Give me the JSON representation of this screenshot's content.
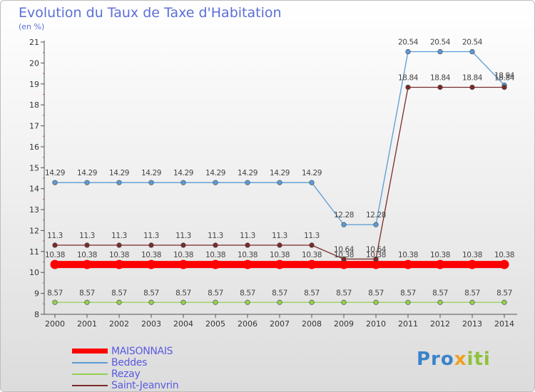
{
  "title": "Evolution du Taux de Taxe d'Habitation",
  "unit_label": "(en %)",
  "logo": {
    "part1": "Pro",
    "part2": "x",
    "part3": "iti"
  },
  "chart_data": {
    "type": "line",
    "title": "Evolution du Taux de Taxe d'Habitation",
    "ylabel": "(en %)",
    "ylim": [
      8,
      21
    ],
    "yticks": [
      "8",
      "9",
      "10",
      "11",
      "12",
      "13",
      "14",
      "15",
      "16",
      "17",
      "18",
      "19",
      "20",
      "21"
    ],
    "categories": [
      "2000",
      "2001",
      "2002",
      "2003",
      "2004",
      "2005",
      "2006",
      "2007",
      "2008",
      "2009",
      "2010",
      "2011",
      "2012",
      "2013",
      "2014"
    ],
    "grid": false,
    "legend_position": "bottom-left",
    "series": [
      {
        "name": "MAISONNAIS",
        "color": "#ff0000",
        "values": [
          10.38,
          10.38,
          10.38,
          10.38,
          10.38,
          10.38,
          10.38,
          10.38,
          10.38,
          10.38,
          10.38,
          10.38,
          10.38,
          10.38,
          10.38
        ],
        "labels": [
          "10.38",
          "10.38",
          "10.38",
          "10.38",
          "10.38",
          "10.38",
          "10.38",
          "10.38",
          "10.38",
          "10.38",
          "10.38",
          "10.38",
          "10.38",
          "10.38",
          "10.38"
        ]
      },
      {
        "name": "Beddes",
        "color": "#5b9bd5",
        "values": [
          14.29,
          14.29,
          14.29,
          14.29,
          14.29,
          14.29,
          14.29,
          14.29,
          14.29,
          12.28,
          12.28,
          20.54,
          20.54,
          20.54,
          18.94
        ],
        "labels": [
          "14.29",
          "14.29",
          "14.29",
          "14.29",
          "14.29",
          "14.29",
          "14.29",
          "14.29",
          "14.29",
          "12.28",
          "12.28",
          "20.54",
          "20.54",
          "20.54",
          "18.94"
        ]
      },
      {
        "name": "Rezay",
        "color": "#92d050",
        "values": [
          8.57,
          8.57,
          8.57,
          8.57,
          8.57,
          8.57,
          8.57,
          8.57,
          8.57,
          8.57,
          8.57,
          8.57,
          8.57,
          8.57,
          8.57
        ],
        "labels": [
          "8.57",
          "8.57",
          "8.57",
          "8.57",
          "8.57",
          "8.57",
          "8.57",
          "8.57",
          "8.57",
          "8.57",
          "8.57",
          "8.57",
          "8.57",
          "8.57",
          "8.57"
        ]
      },
      {
        "name": "Saint-Jeanvrin",
        "color": "#7b2a2a",
        "values": [
          11.3,
          11.3,
          11.3,
          11.3,
          11.3,
          11.3,
          11.3,
          11.3,
          11.3,
          10.64,
          10.64,
          18.84,
          18.84,
          18.84,
          18.84
        ],
        "labels": [
          "11.3",
          "11.3",
          "11.3",
          "11.3",
          "11.3",
          "11.3",
          "11.3",
          "11.3",
          "11.3",
          "10.64",
          "10.64",
          "18.84",
          "18.84",
          "18.84",
          "18.84"
        ]
      }
    ]
  }
}
